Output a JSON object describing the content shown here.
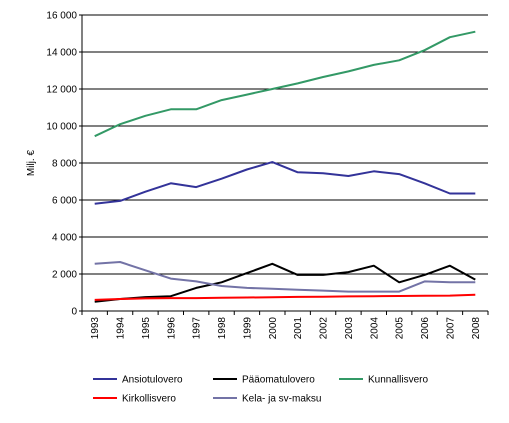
{
  "chart_data": {
    "type": "line",
    "title": "",
    "xlabel": "",
    "ylabel": "Milj. €",
    "ylim": [
      0,
      16000
    ],
    "yticks": [
      0,
      2000,
      4000,
      6000,
      8000,
      10000,
      12000,
      14000,
      16000
    ],
    "ytick_labels": [
      "0",
      "2 000",
      "4 000",
      "6 000",
      "8 000",
      "10 000",
      "12 000",
      "14 000",
      "16 000"
    ],
    "grid": true,
    "legend_position": "bottom",
    "categories": [
      "1993",
      "1994",
      "1995",
      "1996",
      "1997",
      "1998",
      "1999",
      "2000",
      "2001",
      "2002",
      "2003",
      "2004",
      "2005",
      "2006",
      "2007",
      "2008"
    ],
    "series": [
      {
        "name": "Ansiotulovero",
        "color": "#333399",
        "values": [
          5800,
          5950,
          6450,
          6900,
          6700,
          7150,
          7650,
          8050,
          7500,
          7450,
          7300,
          7550,
          7400,
          6900,
          6350,
          6350
        ]
      },
      {
        "name": "Pääomatulovero",
        "color": "#000000",
        "values": [
          500,
          650,
          750,
          800,
          1250,
          1550,
          2050,
          2550,
          1950,
          1950,
          2100,
          2450,
          1550,
          1950,
          2450,
          1700
        ]
      },
      {
        "name": "Kunnallisvero",
        "color": "#339966",
        "values": [
          9450,
          10100,
          10550,
          10900,
          10900,
          11400,
          11700,
          12000,
          12300,
          12650,
          12950,
          13300,
          13550,
          14100,
          14800,
          15100
        ]
      },
      {
        "name": "Kirkollisvero",
        "color": "#ff0000",
        "values": [
          600,
          650,
          680,
          700,
          700,
          720,
          730,
          740,
          760,
          770,
          790,
          800,
          810,
          820,
          830,
          880
        ]
      },
      {
        "name": "Kela- ja sv-maksu",
        "color": "#7373a6",
        "values": [
          2550,
          2650,
          2200,
          1750,
          1600,
          1350,
          1250,
          1200,
          1150,
          1100,
          1050,
          1050,
          1050,
          1600,
          1550,
          1550
        ]
      }
    ]
  }
}
